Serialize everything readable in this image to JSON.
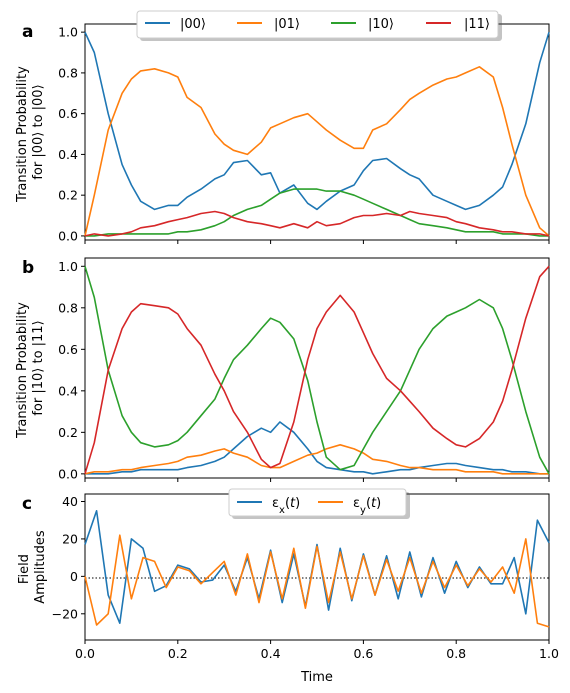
{
  "colors": {
    "c00": "#1f77b4",
    "c01": "#ff7f0e",
    "c10": "#2ca02c",
    "c11": "#d62728",
    "ex": "#1f77b4",
    "ey": "#ff7f0e"
  },
  "chart_data": [
    {
      "panel": "a",
      "type": "line",
      "ylabel_lines": [
        "Transition Probability",
        "for |00⟩ to |00⟩"
      ],
      "ylim": [
        -0.02,
        1.04
      ],
      "yticks": [
        0.0,
        0.2,
        0.4,
        0.6,
        0.8,
        1.0
      ],
      "ytick_labels": [
        "0.0",
        "0.2",
        "0.4",
        "0.6",
        "0.8",
        "1.0"
      ],
      "legend": {
        "placement": "top-center",
        "entries": [
          "|00⟩",
          "|01⟩",
          "|10⟩",
          "|11⟩"
        ]
      },
      "x": [
        0,
        0.02,
        0.05,
        0.08,
        0.1,
        0.12,
        0.15,
        0.18,
        0.2,
        0.22,
        0.25,
        0.28,
        0.3,
        0.32,
        0.35,
        0.38,
        0.4,
        0.42,
        0.45,
        0.48,
        0.5,
        0.52,
        0.55,
        0.58,
        0.6,
        0.62,
        0.65,
        0.68,
        0.7,
        0.72,
        0.75,
        0.78,
        0.8,
        0.82,
        0.85,
        0.88,
        0.9,
        0.92,
        0.95,
        0.98,
        1.0
      ],
      "series": [
        {
          "name": "|00⟩",
          "color_key": "c00",
          "values": [
            1.0,
            0.9,
            0.6,
            0.35,
            0.25,
            0.17,
            0.13,
            0.15,
            0.15,
            0.19,
            0.23,
            0.28,
            0.3,
            0.36,
            0.37,
            0.3,
            0.31,
            0.21,
            0.25,
            0.16,
            0.13,
            0.17,
            0.22,
            0.25,
            0.32,
            0.37,
            0.38,
            0.33,
            0.3,
            0.28,
            0.2,
            0.17,
            0.15,
            0.13,
            0.15,
            0.2,
            0.24,
            0.35,
            0.55,
            0.85,
            1.0
          ]
        },
        {
          "name": "|01⟩",
          "color_key": "c01",
          "values": [
            0.0,
            0.2,
            0.52,
            0.7,
            0.77,
            0.81,
            0.82,
            0.8,
            0.78,
            0.68,
            0.63,
            0.5,
            0.45,
            0.42,
            0.4,
            0.46,
            0.53,
            0.55,
            0.58,
            0.6,
            0.56,
            0.52,
            0.47,
            0.43,
            0.43,
            0.52,
            0.55,
            0.62,
            0.67,
            0.7,
            0.74,
            0.77,
            0.78,
            0.8,
            0.83,
            0.78,
            0.63,
            0.45,
            0.2,
            0.04,
            0.0
          ]
        },
        {
          "name": "|10⟩",
          "color_key": "c10",
          "values": [
            0.0,
            0.0,
            0.01,
            0.01,
            0.01,
            0.01,
            0.01,
            0.01,
            0.02,
            0.02,
            0.03,
            0.05,
            0.07,
            0.1,
            0.13,
            0.15,
            0.18,
            0.21,
            0.23,
            0.23,
            0.23,
            0.22,
            0.22,
            0.2,
            0.18,
            0.16,
            0.13,
            0.1,
            0.08,
            0.06,
            0.05,
            0.04,
            0.03,
            0.02,
            0.02,
            0.02,
            0.01,
            0.01,
            0.01,
            0.0,
            0.0
          ]
        },
        {
          "name": "|11⟩",
          "color_key": "c11",
          "values": [
            0.0,
            0.01,
            0.0,
            0.01,
            0.02,
            0.04,
            0.05,
            0.07,
            0.08,
            0.09,
            0.11,
            0.12,
            0.11,
            0.09,
            0.07,
            0.06,
            0.05,
            0.04,
            0.06,
            0.04,
            0.07,
            0.05,
            0.06,
            0.09,
            0.1,
            0.1,
            0.11,
            0.1,
            0.12,
            0.11,
            0.1,
            0.09,
            0.07,
            0.06,
            0.04,
            0.03,
            0.02,
            0.02,
            0.01,
            0.01,
            0.0
          ]
        }
      ]
    },
    {
      "panel": "b",
      "type": "line",
      "ylabel_lines": [
        "Transition Probability",
        "for |10⟩ to |11⟩"
      ],
      "ylim": [
        -0.02,
        1.04
      ],
      "yticks": [
        0.0,
        0.2,
        0.4,
        0.6,
        0.8,
        1.0
      ],
      "ytick_labels": [
        "0.0",
        "0.2",
        "0.4",
        "0.6",
        "0.8",
        "1.0"
      ],
      "x": [
        0,
        0.02,
        0.05,
        0.08,
        0.1,
        0.12,
        0.15,
        0.18,
        0.2,
        0.22,
        0.25,
        0.28,
        0.3,
        0.32,
        0.35,
        0.38,
        0.4,
        0.42,
        0.45,
        0.48,
        0.5,
        0.52,
        0.55,
        0.58,
        0.6,
        0.62,
        0.65,
        0.68,
        0.7,
        0.72,
        0.75,
        0.78,
        0.8,
        0.82,
        0.85,
        0.88,
        0.9,
        0.92,
        0.95,
        0.98,
        1.0
      ],
      "series": [
        {
          "name": "",
          "color_key": "c00",
          "values": [
            0.0,
            0.0,
            0.0,
            0.01,
            0.01,
            0.02,
            0.02,
            0.02,
            0.02,
            0.03,
            0.04,
            0.06,
            0.08,
            0.12,
            0.18,
            0.22,
            0.2,
            0.25,
            0.2,
            0.12,
            0.06,
            0.03,
            0.02,
            0.01,
            0.01,
            0.0,
            0.01,
            0.02,
            0.02,
            0.03,
            0.04,
            0.05,
            0.05,
            0.04,
            0.03,
            0.02,
            0.02,
            0.01,
            0.01,
            0.0,
            0.0
          ]
        },
        {
          "name": "",
          "color_key": "c01",
          "values": [
            0.0,
            0.01,
            0.01,
            0.02,
            0.02,
            0.03,
            0.04,
            0.05,
            0.06,
            0.08,
            0.09,
            0.11,
            0.12,
            0.1,
            0.08,
            0.04,
            0.03,
            0.03,
            0.06,
            0.09,
            0.1,
            0.12,
            0.14,
            0.12,
            0.1,
            0.07,
            0.06,
            0.04,
            0.03,
            0.03,
            0.02,
            0.02,
            0.02,
            0.01,
            0.01,
            0.01,
            0.0,
            0.0,
            0.0,
            0.0,
            0.0
          ]
        },
        {
          "name": "",
          "color_key": "c10",
          "values": [
            1.0,
            0.85,
            0.5,
            0.28,
            0.2,
            0.15,
            0.13,
            0.14,
            0.16,
            0.2,
            0.28,
            0.36,
            0.46,
            0.55,
            0.62,
            0.7,
            0.75,
            0.73,
            0.65,
            0.45,
            0.25,
            0.08,
            0.02,
            0.04,
            0.12,
            0.2,
            0.3,
            0.4,
            0.5,
            0.6,
            0.7,
            0.76,
            0.78,
            0.8,
            0.84,
            0.8,
            0.7,
            0.55,
            0.3,
            0.08,
            0.0
          ]
        },
        {
          "name": "",
          "color_key": "c11",
          "values": [
            0.0,
            0.15,
            0.5,
            0.7,
            0.78,
            0.82,
            0.81,
            0.8,
            0.77,
            0.7,
            0.62,
            0.48,
            0.4,
            0.3,
            0.2,
            0.07,
            0.03,
            0.05,
            0.25,
            0.55,
            0.7,
            0.78,
            0.86,
            0.78,
            0.68,
            0.58,
            0.46,
            0.4,
            0.35,
            0.3,
            0.22,
            0.17,
            0.14,
            0.13,
            0.17,
            0.25,
            0.35,
            0.5,
            0.75,
            0.95,
            1.0
          ]
        }
      ]
    },
    {
      "panel": "c",
      "type": "line",
      "ylabel_lines": [
        "Field",
        "Amplitudes"
      ],
      "xlabel": "Time",
      "xlim": [
        0,
        1
      ],
      "xticks": [
        0,
        0.2,
        0.4,
        0.6,
        0.8,
        1.0
      ],
      "xtick_labels": [
        "0.0",
        "0.2",
        "0.4",
        "0.6",
        "0.8",
        "1.0"
      ],
      "ylim": [
        -34,
        44
      ],
      "yticks": [
        -20,
        0,
        20,
        40
      ],
      "ytick_labels": [
        "−20",
        "0",
        "20",
        "40"
      ],
      "zero_line": "dotted",
      "legend": {
        "placement": "top-center",
        "entries": [
          "ε_x(t)",
          "ε_y(t)"
        ]
      },
      "series": [
        {
          "name": "ε_x(t)",
          "color_key": "ex",
          "values": [
            17,
            35,
            -10,
            -25,
            20,
            15,
            -8,
            -5,
            6,
            4,
            -3,
            -2,
            6,
            -8,
            10,
            -12,
            14,
            -14,
            12,
            -16,
            17,
            -18,
            15,
            -13,
            12,
            -10,
            11,
            -12,
            13,
            -11,
            10,
            -9,
            8,
            -6,
            5,
            -4,
            -4,
            10,
            -20,
            30,
            18
          ]
        },
        {
          "name": "ε_y(t)",
          "color_key": "ey",
          "values": [
            0,
            -26,
            -20,
            22,
            -12,
            10,
            8,
            -6,
            5,
            3,
            -4,
            2,
            8,
            -10,
            12,
            -14,
            13,
            -12,
            15,
            -17,
            16,
            -14,
            13,
            -12,
            11,
            -10,
            9,
            -8,
            10,
            -9,
            8,
            -6,
            6,
            -5,
            4,
            -3,
            5,
            -9,
            20,
            -25,
            -27
          ]
        }
      ]
    }
  ]
}
